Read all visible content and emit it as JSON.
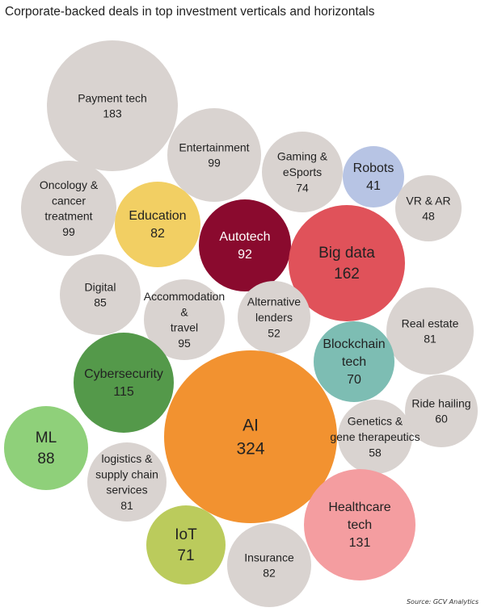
{
  "title": "Corporate-backed deals in top investment verticals and horizontals",
  "source": "Source: GCV Analytics",
  "chart_data": {
    "type": "bubble",
    "title": "Corporate-backed deals in top investment verticals and horizontals",
    "series": [
      {
        "name": "Payment tech",
        "lines": [
          "Payment tech"
        ],
        "value": 183,
        "color": "#d9d3d0",
        "text_color": "#222222"
      },
      {
        "name": "Entertainment",
        "lines": [
          "Entertainment"
        ],
        "value": 99,
        "color": "#d9d3d0",
        "text_color": "#222222"
      },
      {
        "name": "Gaming & eSports",
        "lines": [
          "Gaming &",
          "eSports"
        ],
        "value": 74,
        "color": "#d9d3d0",
        "text_color": "#222222"
      },
      {
        "name": "Robots",
        "lines": [
          "Robots"
        ],
        "value": 41,
        "color": "#b7c4e4",
        "text_color": "#222222"
      },
      {
        "name": "VR & AR",
        "lines": [
          "VR & AR"
        ],
        "value": 48,
        "color": "#d9d3d0",
        "text_color": "#222222"
      },
      {
        "name": "Oncology & cancer treatment",
        "lines": [
          "Oncology &",
          "cancer",
          "treatment"
        ],
        "value": 99,
        "color": "#d9d3d0",
        "text_color": "#222222"
      },
      {
        "name": "Education",
        "lines": [
          "Education"
        ],
        "value": 82,
        "color": "#f2cf63",
        "text_color": "#222222"
      },
      {
        "name": "Autotech",
        "lines": [
          "Autotech"
        ],
        "value": 92,
        "color": "#8a0a2e",
        "text_color": "#ffffff"
      },
      {
        "name": "Big data",
        "lines": [
          "Big data"
        ],
        "value": 162,
        "color": "#e0525a",
        "text_color": "#222222"
      },
      {
        "name": "Digital",
        "lines": [
          "Digital"
        ],
        "value": 85,
        "color": "#d9d3d0",
        "text_color": "#222222"
      },
      {
        "name": "Accommodation & travel",
        "lines": [
          "Accommodation",
          "&",
          "travel"
        ],
        "value": 95,
        "color": "#d9d3d0",
        "text_color": "#222222"
      },
      {
        "name": "Alternative lenders",
        "lines": [
          "Alternative",
          "lenders"
        ],
        "value": 52,
        "color": "#d9d3d0",
        "text_color": "#222222"
      },
      {
        "name": "Real estate",
        "lines": [
          "Real estate"
        ],
        "value": 81,
        "color": "#d9d3d0",
        "text_color": "#222222"
      },
      {
        "name": "Blockchain tech",
        "lines": [
          "Blockchain",
          "tech"
        ],
        "value": 70,
        "color": "#7dbdb3",
        "text_color": "#222222"
      },
      {
        "name": "Cybersecurity",
        "lines": [
          "Cybersecurity"
        ],
        "value": 115,
        "color": "#54994a",
        "text_color": "#222222"
      },
      {
        "name": "Ride hailing",
        "lines": [
          "Ride hailing"
        ],
        "value": 60,
        "color": "#d9d3d0",
        "text_color": "#222222"
      },
      {
        "name": "AI",
        "lines": [
          "AI"
        ],
        "value": 324,
        "color": "#f29230",
        "text_color": "#222222"
      },
      {
        "name": "Genetics & gene therapeutics",
        "lines": [
          "Genetics &",
          "gene therapeutics"
        ],
        "value": 58,
        "color": "#d9d3d0",
        "text_color": "#222222"
      },
      {
        "name": "ML",
        "lines": [
          "ML"
        ],
        "value": 88,
        "color": "#8fd07a",
        "text_color": "#222222"
      },
      {
        "name": "logistics & supply chain services",
        "lines": [
          "logistics &",
          "supply chain",
          "services"
        ],
        "value": 81,
        "color": "#d9d3d0",
        "text_color": "#222222"
      },
      {
        "name": "Healthcare tech",
        "lines": [
          "Healthcare",
          "tech"
        ],
        "value": 131,
        "color": "#f49da0",
        "text_color": "#222222"
      },
      {
        "name": "IoT",
        "lines": [
          "IoT"
        ],
        "value": 71,
        "color": "#bbcb5c",
        "text_color": "#222222"
      },
      {
        "name": "Insurance",
        "lines": [
          "Insurance"
        ],
        "value": 82,
        "color": "#d9d3d0",
        "text_color": "#222222"
      }
    ]
  }
}
